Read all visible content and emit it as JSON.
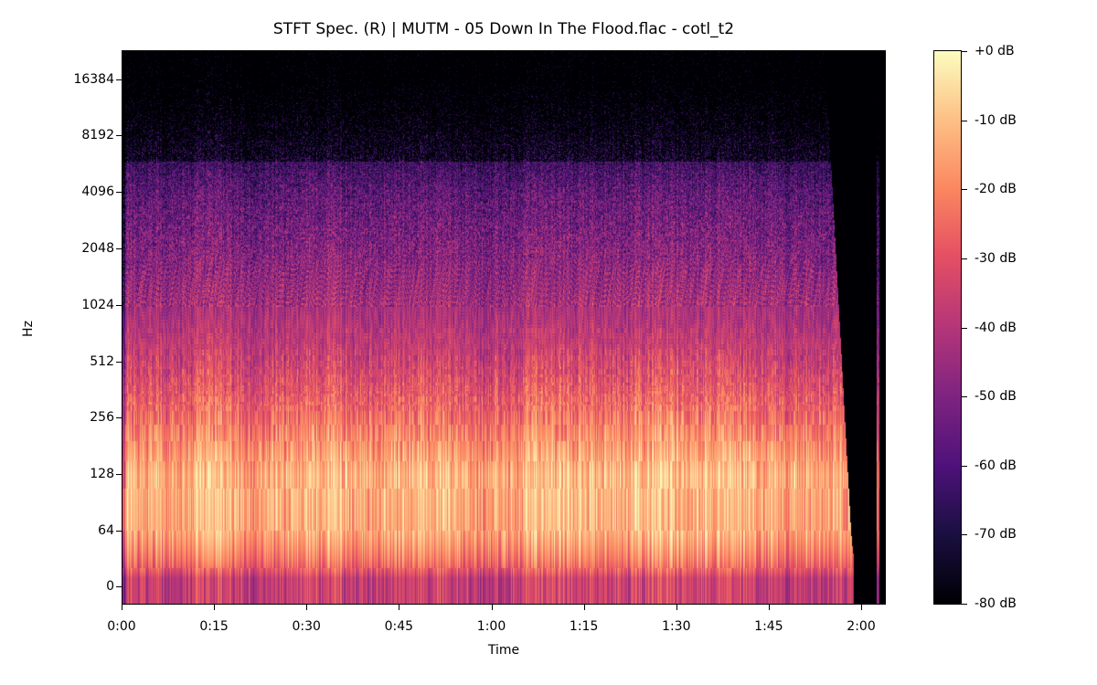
{
  "chart_data": {
    "type": "heatmap",
    "title": "STFT Spec. (R) | MUTM - 05 Down In The Flood.flac - cotl_t2",
    "xlabel": "Time",
    "ylabel": "Hz",
    "x_ticks": [
      "0:00",
      "0:15",
      "0:30",
      "0:45",
      "1:00",
      "1:15",
      "1:30",
      "1:45",
      "2:00"
    ],
    "x_tick_seconds": [
      0,
      15,
      30,
      45,
      60,
      75,
      90,
      105,
      120
    ],
    "xlim_seconds": [
      0,
      124
    ],
    "y_scale": "symlog",
    "y_ticks": [
      0,
      64,
      128,
      256,
      512,
      1024,
      2048,
      4096,
      8192,
      16384
    ],
    "colormap": "magma",
    "colorbar": {
      "range_db": [
        -80,
        0
      ],
      "ticks": [
        "+0 dB",
        "-10 dB",
        "-20 dB",
        "-30 dB",
        "-40 dB",
        "-50 dB",
        "-60 dB",
        "-70 dB",
        "-80 dB"
      ],
      "tick_values": [
        0,
        -10,
        -20,
        -30,
        -40,
        -50,
        -60,
        -70,
        -80
      ]
    },
    "approx_level_by_frequency_db": {
      "frequencies_hz": [
        10,
        40,
        64,
        128,
        256,
        512,
        1024,
        2048,
        4096,
        8192,
        16384
      ],
      "levels_db": [
        -36,
        -20,
        -14,
        -12,
        -24,
        -35,
        -43,
        -50,
        -57,
        -70,
        -85
      ]
    },
    "audio_end_seconds": 119,
    "grid": false
  }
}
